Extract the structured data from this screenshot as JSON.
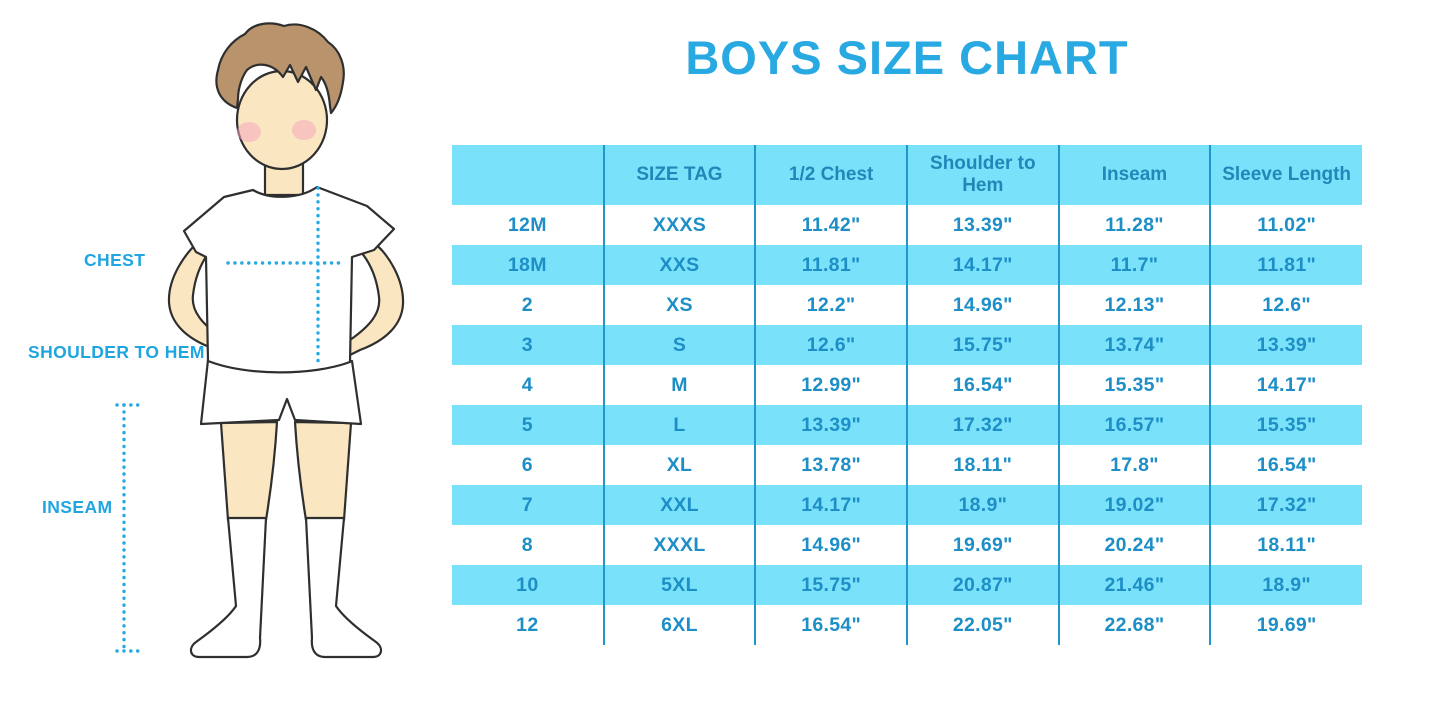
{
  "title": "BOYS SIZE CHART",
  "diagram": {
    "chest_label": "CHEST",
    "shoulder_to_hem_label": "SHOULDER TO HEM",
    "inseam_label": "INSEAM"
  },
  "chart_data": {
    "type": "table",
    "title": "BOYS SIZE CHART",
    "columns": [
      "",
      "SIZE TAG",
      "1/2 Chest",
      "Shoulder to Hem",
      "Inseam",
      "Sleeve Length"
    ],
    "rows": [
      [
        "12M",
        "XXXS",
        "11.42\"",
        "13.39\"",
        "11.28\"",
        "11.02\""
      ],
      [
        "18M",
        "XXS",
        "11.81\"",
        "14.17\"",
        "11.7\"",
        "11.81\""
      ],
      [
        "2",
        "XS",
        "12.2\"",
        "14.96\"",
        "12.13\"",
        "12.6\""
      ],
      [
        "3",
        "S",
        "12.6\"",
        "15.75\"",
        "13.74\"",
        "13.39\""
      ],
      [
        "4",
        "M",
        "12.99\"",
        "16.54\"",
        "15.35\"",
        "14.17\""
      ],
      [
        "5",
        "L",
        "13.39\"",
        "17.32\"",
        "16.57\"",
        "15.35\""
      ],
      [
        "6",
        "XL",
        "13.78\"",
        "18.11\"",
        "17.8\"",
        "16.54\""
      ],
      [
        "7",
        "XXL",
        "14.17\"",
        "18.9\"",
        "19.02\"",
        "17.32\""
      ],
      [
        "8",
        "XXXL",
        "14.96\"",
        "19.69\"",
        "20.24\"",
        "18.11\""
      ],
      [
        "10",
        "5XL",
        "15.75\"",
        "20.87\"",
        "21.46\"",
        "18.9\""
      ],
      [
        "12",
        "6XL",
        "16.54\"",
        "22.05\"",
        "22.68\"",
        "19.69\""
      ]
    ],
    "layout": {
      "striped": true,
      "stripe_pattern": "header and every second body row",
      "column_dividers": true,
      "outer_border": false
    },
    "colors": {
      "accent": "#29A9E1",
      "stripe": "#7AE1FB",
      "divider": "#2196C9",
      "header_text": "#2187B8",
      "cell_text": "#1D8FC6"
    }
  }
}
